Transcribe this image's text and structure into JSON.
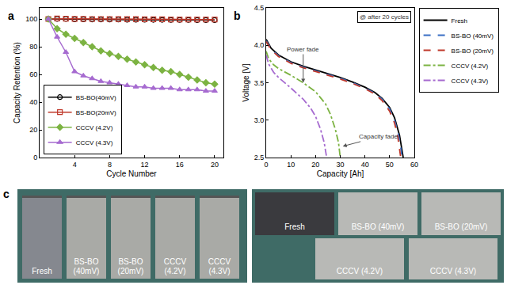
{
  "chart_data": [
    {
      "type": "line",
      "title": "a",
      "xlabel": "Cycle Number",
      "ylabel": "Capacity Retention (%)",
      "x": [
        1,
        2,
        3,
        4,
        5,
        6,
        7,
        8,
        9,
        10,
        11,
        12,
        13,
        14,
        15,
        16,
        17,
        18,
        19,
        20
      ],
      "xlim": [
        0,
        21
      ],
      "xticks": [
        4,
        8,
        12,
        16,
        20
      ],
      "ylim": [
        0,
        108
      ],
      "yticks": [
        0,
        20,
        40,
        60,
        80,
        100
      ],
      "grid": false,
      "legend": "lower left",
      "series": [
        {
          "name": "BS-BO(40mV)",
          "color": "#000000",
          "marker": "circle-open",
          "line_style": "solid",
          "values": [
            100,
            100,
            100,
            99.8,
            99.8,
            99.7,
            99.7,
            99.6,
            99.6,
            99.5,
            99.5,
            99.5,
            99.4,
            99.4,
            99.3,
            99.3,
            99.3,
            99.2,
            99.2,
            99.2
          ]
        },
        {
          "name": "BS-BO(20mV)",
          "color": "#c0392b",
          "marker": "square-open",
          "line_style": "solid",
          "values": [
            100,
            100.3,
            100.2,
            100.1,
            100.1,
            100,
            100,
            100,
            99.9,
            99.9,
            99.9,
            99.8,
            99.8,
            99.8,
            99.7,
            99.7,
            99.7,
            99.6,
            99.6,
            99.6
          ]
        },
        {
          "name": "CCCV (4.2V)",
          "color": "#7cb342",
          "marker": "diamond",
          "line_style": "solid",
          "values": [
            100,
            93,
            89,
            86,
            83,
            80,
            77,
            75,
            73,
            71,
            69,
            67,
            65,
            63,
            62,
            60,
            58,
            56,
            54,
            53
          ]
        },
        {
          "name": "CCCV (4.3V)",
          "color": "#a66bd0",
          "marker": "triangle-up",
          "line_style": "solid",
          "values": [
            100,
            87,
            76,
            62,
            59,
            57,
            55,
            54,
            53,
            52,
            51,
            51,
            50,
            50,
            50,
            49,
            49,
            49,
            48,
            48
          ]
        }
      ]
    },
    {
      "type": "line",
      "title": "b",
      "xlabel": "Capacity [Ah]",
      "ylabel": "Voltage [V]",
      "xlim": [
        0,
        60
      ],
      "xticks": [
        0,
        10,
        20,
        30,
        40,
        50,
        60
      ],
      "ylim": [
        2.5,
        4.5
      ],
      "yticks": [
        2.5,
        {
          "value": 3,
          "label": "3.0"
        },
        3.5,
        {
          "value": 4,
          "label": "4.0"
        },
        4.5
      ],
      "grid": false,
      "legend": "right",
      "annotations": [
        "@ after 20 cycles",
        "Power fade",
        "Capacity fade"
      ],
      "series": [
        {
          "name": "Fresh",
          "color": "#000000",
          "line_style": "solid",
          "x": [
            0,
            1,
            2,
            5,
            10,
            15,
            20,
            25,
            30,
            35,
            40,
            44,
            47,
            50,
            52,
            54,
            55,
            55.5
          ],
          "values": [
            4.08,
            4.02,
            3.96,
            3.87,
            3.78,
            3.72,
            3.67,
            3.62,
            3.57,
            3.51,
            3.44,
            3.37,
            3.29,
            3.17,
            3.03,
            2.8,
            2.62,
            2.5
          ]
        },
        {
          "name": "BS-BO (40mV)",
          "color": "#3a6fc4",
          "line_style": "dash",
          "x": [
            0,
            1,
            2,
            5,
            10,
            15,
            20,
            25,
            30,
            35,
            40,
            44,
            47,
            50,
            52,
            53.5,
            54.5,
            55
          ],
          "values": [
            4.06,
            4.0,
            3.95,
            3.86,
            3.77,
            3.71,
            3.66,
            3.61,
            3.56,
            3.5,
            3.43,
            3.36,
            3.28,
            3.15,
            3.0,
            2.82,
            2.64,
            2.5
          ]
        },
        {
          "name": "BS-BO (20mV)",
          "color": "#c0392b",
          "line_style": "dash",
          "x": [
            0,
            1,
            2,
            5,
            10,
            15,
            20,
            25,
            30,
            35,
            40,
            44,
            47,
            50,
            52,
            53.3,
            54.1,
            54.5
          ],
          "values": [
            4.05,
            3.99,
            3.94,
            3.85,
            3.76,
            3.7,
            3.65,
            3.6,
            3.55,
            3.49,
            3.42,
            3.35,
            3.26,
            3.12,
            2.96,
            2.78,
            2.6,
            2.5
          ]
        },
        {
          "name": "CCCV (4.2V)",
          "color": "#7cb342",
          "line_style": "dashdot",
          "x": [
            0,
            1,
            3,
            5,
            10,
            15,
            20,
            24,
            26,
            28,
            29.3,
            30
          ],
          "values": [
            3.92,
            3.82,
            3.74,
            3.69,
            3.6,
            3.5,
            3.38,
            3.22,
            3.08,
            2.88,
            2.7,
            2.5
          ]
        },
        {
          "name": "CCCV (4.3V)",
          "color": "#a66bd0",
          "line_style": "dashdot",
          "x": [
            0,
            1,
            3,
            5,
            10,
            15,
            18,
            20,
            22,
            23.5,
            24.5
          ],
          "values": [
            3.87,
            3.75,
            3.64,
            3.57,
            3.43,
            3.28,
            3.16,
            3.05,
            2.88,
            2.7,
            2.5
          ]
        }
      ]
    }
  ],
  "photos": {
    "label": "c",
    "full_cells": [
      "Fresh",
      "BS-BO\n(40mV)",
      "BS-BO\n(20mV)",
      "CCCV\n(4.2V)",
      "CCCV\n(4.3V)"
    ],
    "close_ups": [
      "Fresh",
      "BS-BO (40mV)",
      "BS-BO (20mV)",
      "CCCV (4.2V)",
      "CCCV (4.3V)"
    ]
  }
}
